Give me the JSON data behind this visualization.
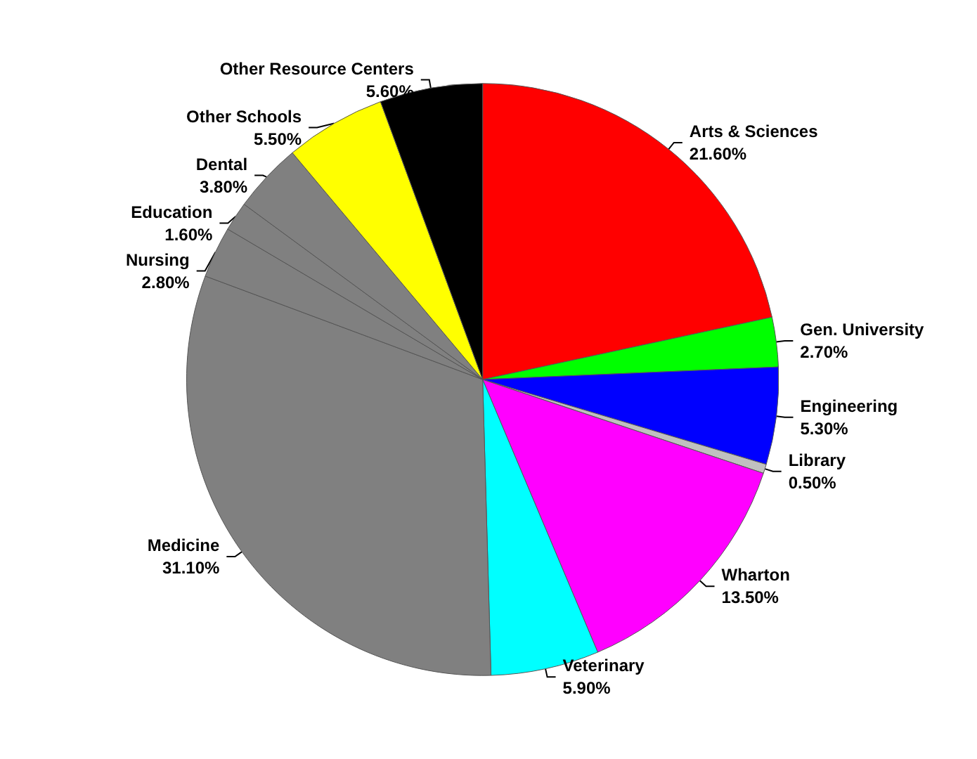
{
  "chart_data": {
    "type": "pie",
    "categories": [
      "Arts & Sciences",
      "Gen. University",
      "Engineering",
      "Library",
      "Wharton",
      "Veterinary",
      "Medicine",
      "Nursing",
      "Education",
      "Dental",
      "Other Schools",
      "Other Resource Centers"
    ],
    "values": [
      21.6,
      2.7,
      5.3,
      0.5,
      13.5,
      5.9,
      31.1,
      2.8,
      1.6,
      3.8,
      5.5,
      5.6
    ],
    "value_labels": [
      "21.60%",
      "2.70%",
      "5.30%",
      "0.50%",
      "13.50%",
      "5.90%",
      "31.10%",
      "2.80%",
      "1.60%",
      "3.80%",
      "5.50%",
      "5.60%"
    ],
    "colors": [
      "#ff0000",
      "#00ff00",
      "#0000ff",
      "#c0c0c0",
      "#ff00ff",
      "#00ffff",
      "#808080",
      "#808080",
      "#808080",
      "#808080",
      "#ffff00",
      "#000000"
    ]
  }
}
